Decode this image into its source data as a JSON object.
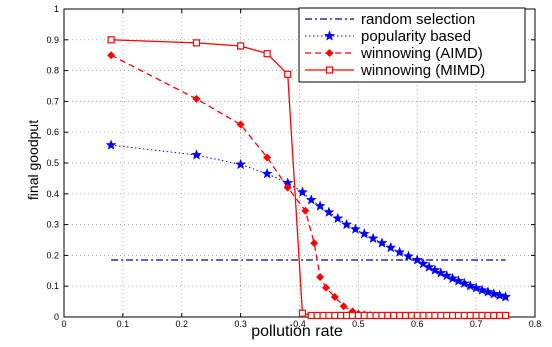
{
  "chart_data": {
    "type": "line",
    "xlabel": "pollution rate",
    "ylabel": "final goodput",
    "xlim": [
      0,
      0.8
    ],
    "ylim": [
      0,
      1
    ],
    "xticks": [
      0,
      0.1,
      0.2,
      0.3,
      0.4,
      0.5,
      0.6,
      0.7,
      0.8
    ],
    "yticks": [
      0,
      0.1,
      0.2,
      0.3,
      0.4,
      0.5,
      0.6,
      0.7,
      0.8,
      0.9,
      1
    ],
    "xtick_labels": [
      "0",
      "0.1",
      "0.2",
      "0.3",
      "0.4",
      "0.5",
      "0.6",
      "0.7",
      "0.8"
    ],
    "ytick_labels": [
      "0",
      "0.1",
      "0.2",
      "0.3",
      "0.4",
      "0.5",
      "0.6",
      "0.7",
      "0.8",
      "0.9",
      "1"
    ],
    "grid": "dotted",
    "legend_position": "top-right",
    "series": [
      {
        "name": "random selection",
        "color": "#00008b",
        "style": "dashdot",
        "marker": "none",
        "x": [
          0.08,
          0.75
        ],
        "y": [
          0.185,
          0.185
        ]
      },
      {
        "name": "popularity based",
        "color": "#0000ff",
        "style": "dotted",
        "marker": "star",
        "x": [
          0.08,
          0.225,
          0.3,
          0.345,
          0.38,
          0.405,
          0.42,
          0.435,
          0.45,
          0.465,
          0.48,
          0.495,
          0.51,
          0.525,
          0.54,
          0.555,
          0.57,
          0.585,
          0.6,
          0.61,
          0.62,
          0.63,
          0.64,
          0.65,
          0.66,
          0.67,
          0.68,
          0.69,
          0.7,
          0.71,
          0.72,
          0.73,
          0.74,
          0.75
        ],
        "y": [
          0.558,
          0.526,
          0.495,
          0.465,
          0.435,
          0.405,
          0.38,
          0.36,
          0.34,
          0.32,
          0.3,
          0.285,
          0.27,
          0.255,
          0.24,
          0.225,
          0.21,
          0.197,
          0.185,
          0.173,
          0.162,
          0.152,
          0.143,
          0.134,
          0.125,
          0.117,
          0.109,
          0.101,
          0.094,
          0.087,
          0.081,
          0.075,
          0.07,
          0.065
        ]
      },
      {
        "name": "winnowing (AIMD)",
        "color": "#ff0000",
        "style": "dashed",
        "marker": "diamond",
        "x": [
          0.08,
          0.225,
          0.3,
          0.345,
          0.38,
          0.41,
          0.425,
          0.435,
          0.445,
          0.46,
          0.475,
          0.49,
          0.5,
          0.51,
          0.52,
          0.53,
          0.54,
          0.55,
          0.56,
          0.57,
          0.58,
          0.59,
          0.6,
          0.61,
          0.62,
          0.63,
          0.64,
          0.65,
          0.66,
          0.67,
          0.68,
          0.69,
          0.7,
          0.71,
          0.72,
          0.73,
          0.74,
          0.75
        ],
        "y": [
          0.85,
          0.708,
          0.625,
          0.518,
          0.42,
          0.345,
          0.24,
          0.13,
          0.095,
          0.065,
          0.035,
          0.018,
          0.01,
          0.008,
          0.006,
          0.005,
          0.005,
          0.005,
          0.005,
          0.005,
          0.005,
          0.005,
          0.005,
          0.005,
          0.005,
          0.005,
          0.005,
          0.005,
          0.005,
          0.005,
          0.005,
          0.005,
          0.005,
          0.005,
          0.005,
          0.005,
          0.005,
          0.005
        ]
      },
      {
        "name": "winnowing (MIMD)",
        "color": "#ff0000",
        "style": "solid",
        "marker": "square",
        "x": [
          0.08,
          0.225,
          0.3,
          0.345,
          0.38,
          0.405,
          0.42,
          0.43,
          0.44,
          0.45,
          0.46,
          0.47,
          0.48,
          0.49,
          0.5,
          0.51,
          0.52,
          0.53,
          0.54,
          0.55,
          0.56,
          0.57,
          0.58,
          0.59,
          0.6,
          0.61,
          0.62,
          0.63,
          0.64,
          0.65,
          0.66,
          0.67,
          0.68,
          0.69,
          0.7,
          0.71,
          0.72,
          0.73,
          0.74,
          0.75
        ],
        "y": [
          0.9,
          0.89,
          0.88,
          0.855,
          0.788,
          0.012,
          0.005,
          0.005,
          0.005,
          0.005,
          0.005,
          0.005,
          0.005,
          0.005,
          0.005,
          0.005,
          0.005,
          0.005,
          0.005,
          0.005,
          0.005,
          0.005,
          0.005,
          0.005,
          0.005,
          0.005,
          0.005,
          0.005,
          0.005,
          0.005,
          0.005,
          0.005,
          0.005,
          0.005,
          0.005,
          0.005,
          0.005,
          0.005,
          0.005,
          0.005
        ]
      }
    ]
  }
}
